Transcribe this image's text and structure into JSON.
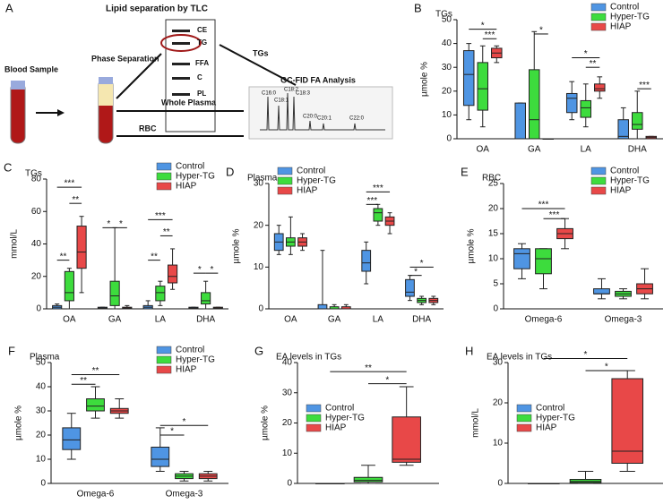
{
  "diagram": {
    "label": "A",
    "tlc_title": "Lipid separation by TLC",
    "tlc_bands": [
      "CE",
      "TG",
      "FFA",
      "C",
      "PL"
    ],
    "blood": "Blood Sample",
    "phase": "Phase Separation",
    "tgs": "TGs",
    "plasma": "Whole Plasma",
    "rbc": "RBC",
    "gc_title": "GC-FID FA Analysis",
    "peaks": [
      "C16:0",
      "C18:1",
      "C18:2",
      "C18:3",
      "C20:0",
      "C20:1",
      "C22:0"
    ]
  },
  "chart_data": [
    {
      "type": "box",
      "label": "B",
      "title": "TGs",
      "ylabel": "µmole %",
      "categories": [
        "OA",
        "GA",
        "LA",
        "DHA"
      ],
      "ylim": [
        0,
        50
      ],
      "yticks": [
        0,
        10,
        20,
        30,
        40,
        50
      ],
      "legend": "upper right",
      "series": [
        {
          "name": "Control",
          "color": "#4f95e3",
          "values": [
            [
              8,
              14,
              27,
              37,
              40
            ],
            [
              0,
              0,
              0,
              15,
              15
            ],
            [
              8,
              11,
              17,
              19,
              24
            ],
            [
              0,
              0,
              1,
              8,
              13
            ]
          ]
        },
        {
          "name": "Hyper-TG",
          "color": "#3ddc3d",
          "values": [
            [
              5,
              12,
              21,
              32,
              39
            ],
            [
              0,
              0,
              8,
              29,
              45
            ],
            [
              5,
              9,
              13,
              16,
              23
            ],
            [
              0,
              4,
              6,
              11,
              20
            ]
          ]
        },
        {
          "name": "HIAP",
          "color": "#e84848",
          "values": [
            [
              32,
              34,
              36,
              38,
              39
            ],
            [
              0,
              0,
              0,
              0,
              0
            ],
            [
              17,
              20,
              21,
              23,
              26
            ],
            [
              0,
              0,
              0.5,
              1,
              1
            ]
          ]
        }
      ],
      "annotations": [
        {
          "text": "*",
          "category": "OA",
          "between": [
            "Control",
            "HIAP"
          ],
          "y": 46
        },
        {
          "text": "***",
          "category": "OA",
          "between": [
            "Hyper-TG",
            "HIAP"
          ],
          "y": 42
        },
        {
          "text": "*",
          "category": "GA",
          "between": [
            "Hyper-TG",
            "HIAP"
          ],
          "y": 44
        },
        {
          "text": "*",
          "category": "LA",
          "between": [
            "Control",
            "HIAP"
          ],
          "y": 34
        },
        {
          "text": "**",
          "category": "LA",
          "between": [
            "Hyper-TG",
            "HIAP"
          ],
          "y": 30
        },
        {
          "text": "***",
          "category": "DHA",
          "between": [
            "Hyper-TG",
            "HIAP"
          ],
          "y": 21
        }
      ]
    },
    {
      "type": "box",
      "label": "C",
      "title": "TGs",
      "ylabel": "mmol/L",
      "categories": [
        "OA",
        "GA",
        "LA",
        "DHA"
      ],
      "ylim": [
        0,
        80
      ],
      "yticks": [
        0,
        20,
        40,
        60,
        80
      ],
      "legend": "upper right",
      "series": [
        {
          "name": "Control",
          "color": "#4f95e3",
          "values": [
            [
              0,
              0,
              1,
              2,
              3
            ],
            [
              0,
              0,
              0.5,
              1,
              1
            ],
            [
              0,
              0,
              1,
              2,
              5
            ],
            [
              0,
              0,
              0.5,
              1,
              1
            ]
          ]
        },
        {
          "name": "Hyper-TG",
          "color": "#3ddc3d",
          "values": [
            [
              0,
              5,
              10,
              23,
              25
            ],
            [
              0,
              2,
              8,
              17,
              50
            ],
            [
              2,
              5,
              10,
              14,
              17
            ],
            [
              0,
              3,
              5,
              10,
              17
            ]
          ]
        },
        {
          "name": "HIAP",
          "color": "#e84848",
          "values": [
            [
              10,
              25,
              35,
              51,
              57
            ],
            [
              0,
              0,
              0.5,
              1,
              2
            ],
            [
              12,
              16,
              20,
              27,
              37
            ],
            [
              0,
              0,
              0.5,
              1,
              1
            ]
          ]
        }
      ],
      "annotations": [
        {
          "text": "**",
          "category": "OA",
          "between": [
            "Control",
            "Hyper-TG"
          ],
          "y": 30
        },
        {
          "text": "***",
          "category": "OA",
          "between": [
            "Control",
            "HIAP"
          ],
          "y": 75
        },
        {
          "text": "**",
          "category": "OA",
          "between": [
            "Hyper-TG",
            "HIAP"
          ],
          "y": 65
        },
        {
          "text": "*",
          "category": "GA",
          "between": [
            "Control",
            "Hyper-TG"
          ],
          "y": 50
        },
        {
          "text": "*",
          "category": "GA",
          "between": [
            "Hyper-TG",
            "HIAP"
          ],
          "y": 50
        },
        {
          "text": "**",
          "category": "LA",
          "between": [
            "Control",
            "Hyper-TG"
          ],
          "y": 30
        },
        {
          "text": "***",
          "category": "LA",
          "between": [
            "Control",
            "HIAP"
          ],
          "y": 55
        },
        {
          "text": "**",
          "category": "LA",
          "between": [
            "Hyper-TG",
            "HIAP"
          ],
          "y": 45
        },
        {
          "text": "*",
          "category": "DHA",
          "between": [
            "Control",
            "Hyper-TG"
          ],
          "y": 22
        },
        {
          "text": "*",
          "category": "DHA",
          "between": [
            "Hyper-TG",
            "HIAP"
          ],
          "y": 22
        }
      ]
    },
    {
      "type": "box",
      "label": "D",
      "title": "Plasma",
      "ylabel": "µmole %",
      "categories": [
        "OA",
        "GA",
        "LA",
        "DHA"
      ],
      "ylim": [
        0,
        30
      ],
      "yticks": [
        0,
        10,
        20,
        30
      ],
      "legend": "upper left",
      "series": [
        {
          "name": "Control",
          "color": "#4f95e3",
          "values": [
            [
              13,
              14,
              16,
              18,
              20
            ],
            [
              0,
              0,
              0,
              1,
              14
            ],
            [
              6,
              9,
              11,
              14,
              16
            ],
            [
              2,
              3,
              4,
              7,
              8
            ]
          ]
        },
        {
          "name": "Hyper-TG",
          "color": "#3ddc3d",
          "values": [
            [
              13,
              15,
              16,
              17,
              22
            ],
            [
              0,
              0,
              0,
              0.5,
              1
            ],
            [
              20,
              21,
              23,
              24,
              25
            ],
            [
              1,
              1.5,
              2,
              2.5,
              3
            ]
          ]
        },
        {
          "name": "HIAP",
          "color": "#e84848",
          "values": [
            [
              14,
              15,
              16,
              17,
              18
            ],
            [
              0,
              0,
              0,
              0.5,
              1
            ],
            [
              18,
              20,
              21,
              22,
              23
            ],
            [
              1,
              1.5,
              2,
              2.5,
              3
            ]
          ]
        }
      ],
      "annotations": [
        {
          "text": "***",
          "category": "LA",
          "between": [
            "Control",
            "HIAP"
          ],
          "y": 28
        },
        {
          "text": "***",
          "category": "LA",
          "between": [
            "Control",
            "Hyper-TG"
          ],
          "y": 25
        },
        {
          "text": "*",
          "category": "DHA",
          "between": [
            "Control",
            "HIAP"
          ],
          "y": 10
        },
        {
          "text": "*",
          "category": "DHA",
          "between": [
            "Control",
            "Hyper-TG"
          ],
          "y": 8
        }
      ]
    },
    {
      "type": "box",
      "label": "E",
      "title": "RBC",
      "ylabel": "µmole %",
      "categories": [
        "Omega-6",
        "Omega-3"
      ],
      "ylim": [
        0,
        25
      ],
      "yticks": [
        0,
        5,
        10,
        15,
        20,
        25
      ],
      "legend": "upper right",
      "series": [
        {
          "name": "Control",
          "color": "#4f95e3",
          "values": [
            [
              6,
              8,
              11,
              12,
              13
            ],
            [
              2,
              3,
              3,
              4,
              6
            ]
          ]
        },
        {
          "name": "Hyper-TG",
          "color": "#3ddc3d",
          "values": [
            [
              4,
              7,
              10,
              12,
              12
            ],
            [
              2,
              2.5,
              3,
              3.5,
              4
            ]
          ]
        },
        {
          "name": "HIAP",
          "color": "#e84848",
          "values": [
            [
              12,
              14,
              15,
              16,
              18
            ],
            [
              2,
              3,
              4,
              5,
              8
            ]
          ]
        }
      ],
      "annotations": [
        {
          "text": "***",
          "category": "Omega-6",
          "between": [
            "Control",
            "HIAP"
          ],
          "y": 20
        },
        {
          "text": "***",
          "category": "Omega-6",
          "between": [
            "Hyper-TG",
            "HIAP"
          ],
          "y": 18
        }
      ]
    },
    {
      "type": "box",
      "label": "F",
      "title": "Plasma",
      "ylabel": "µmole %",
      "categories": [
        "Omega-6",
        "Omega-3"
      ],
      "ylim": [
        0,
        50
      ],
      "yticks": [
        0,
        10,
        20,
        30,
        40,
        50
      ],
      "legend": "upper right",
      "series": [
        {
          "name": "Control",
          "color": "#4f95e3",
          "values": [
            [
              10,
              14,
              18,
              23,
              29
            ],
            [
              5,
              7,
              10,
              15,
              23
            ]
          ]
        },
        {
          "name": "Hyper-TG",
          "color": "#3ddc3d",
          "values": [
            [
              27,
              30,
              32,
              35,
              40
            ],
            [
              1,
              2,
              3,
              4,
              5
            ]
          ]
        },
        {
          "name": "HIAP",
          "color": "#e84848",
          "values": [
            [
              27,
              29,
              30,
              31,
              35
            ],
            [
              1,
              2,
              3,
              4,
              5
            ]
          ]
        }
      ],
      "annotations": [
        {
          "text": "**",
          "category": "Omega-6",
          "between": [
            "Control",
            "HIAP"
          ],
          "y": 45
        },
        {
          "text": "**",
          "category": "Omega-6",
          "between": [
            "Control",
            "Hyper-TG"
          ],
          "y": 41
        },
        {
          "text": "*",
          "category": "Omega-3",
          "between": [
            "Control",
            "HIAP"
          ],
          "y": 24
        },
        {
          "text": "*",
          "category": "Omega-3",
          "between": [
            "Control",
            "Hyper-TG"
          ],
          "y": 20
        }
      ]
    },
    {
      "type": "box",
      "label": "G",
      "title": "EA levels in TGs",
      "ylabel": "µmole %",
      "categories": [
        null
      ],
      "ylim": [
        0,
        40
      ],
      "yticks": [
        0,
        10,
        20,
        30,
        40
      ],
      "legend": "center left",
      "series": [
        {
          "name": "Control",
          "color": "#4f95e3",
          "values": [
            [
              0,
              0,
              0,
              0,
              0
            ]
          ]
        },
        {
          "name": "Hyper-TG",
          "color": "#3ddc3d",
          "values": [
            [
              0,
              0.5,
              1,
              2,
              6
            ]
          ]
        },
        {
          "name": "HIAP",
          "color": "#e84848",
          "values": [
            [
              6,
              7,
              8,
              22,
              32
            ]
          ]
        }
      ],
      "annotations": [
        {
          "text": "**",
          "category": null,
          "between": [
            "Control",
            "HIAP"
          ],
          "y": 37
        },
        {
          "text": "*",
          "category": null,
          "between": [
            "Hyper-TG",
            "HIAP"
          ],
          "y": 33
        }
      ]
    },
    {
      "type": "box",
      "label": "H",
      "title": "EA levels in TGs",
      "ylabel": "mmol/L",
      "categories": [
        null
      ],
      "ylim": [
        0,
        30
      ],
      "yticks": [
        0,
        10,
        20,
        30
      ],
      "legend": "center left",
      "series": [
        {
          "name": "Control",
          "color": "#4f95e3",
          "values": [
            [
              0,
              0,
              0,
              0,
              0
            ]
          ]
        },
        {
          "name": "Hyper-TG",
          "color": "#3ddc3d",
          "values": [
            [
              0,
              0.2,
              0.5,
              1,
              3
            ]
          ]
        },
        {
          "name": "HIAP",
          "color": "#e84848",
          "values": [
            [
              3,
              5,
              8,
              26,
              28
            ]
          ]
        }
      ],
      "annotations": [
        {
          "text": "*",
          "category": null,
          "between": [
            "Control",
            "HIAP"
          ],
          "y": 31
        },
        {
          "text": "*",
          "category": null,
          "between": [
            "Hyper-TG",
            "HIAP"
          ],
          "y": 28
        }
      ]
    }
  ]
}
